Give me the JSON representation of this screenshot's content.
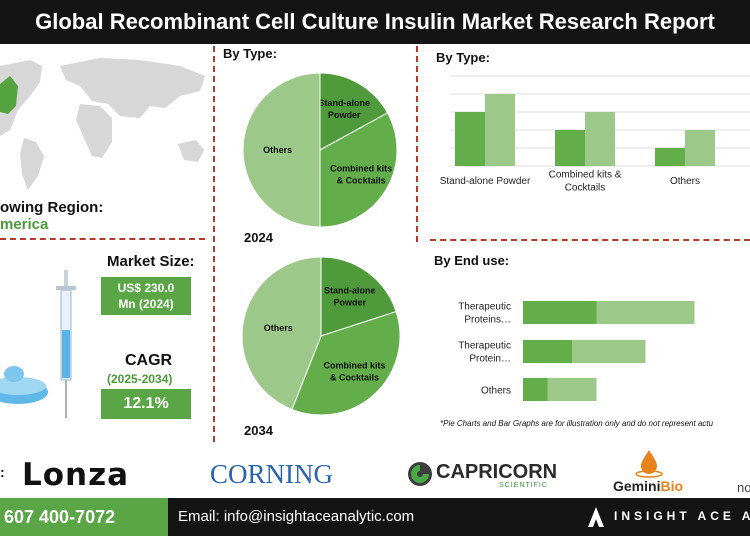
{
  "header": {
    "title": "Global Recombinant Cell Culture Insulin Market Research Report"
  },
  "region": {
    "label": "owing Region:",
    "value": "merica"
  },
  "market_size": {
    "label": "Market Size:",
    "value_line1": "US$ 230.0",
    "value_line2": "Mn (2024)"
  },
  "cagr": {
    "label": "CAGR",
    "period": "(2025-2034)",
    "value": "12.1%"
  },
  "pie_section": {
    "title": "By Type:"
  },
  "bar_type_section": {
    "title": "By Type:"
  },
  "end_use_section": {
    "title": "By End use:"
  },
  "note": "*Pie Charts and Bar Graphs are for illustration only and do not represent actu",
  "logos": {
    "prefix": ":",
    "lonza": "Lonza",
    "corning": "CORNING",
    "capricorn": "CAPRICORN",
    "capricorn_sub": "SCIENTIFIC",
    "gemini_a": "Gemini",
    "gemini_b": "Bio",
    "partial": "no"
  },
  "footer": {
    "phone": "607 400-7072",
    "email": "Email: info@insightaceanalytic.com",
    "brand": "INSIGHT ACE A"
  },
  "colors": {
    "dark_green": "#4f9a3a",
    "mid_green": "#63ad4a",
    "light_green": "#9cc98a",
    "accent_red": "#b53a2e",
    "header_bg": "#141414"
  },
  "chart_data": [
    {
      "type": "pie",
      "title": "",
      "year": "2024",
      "categories": [
        "Stand-alone Powder",
        "Combined kits & Cocktails",
        "Others"
      ],
      "labels": [
        "Stand-alone Powder",
        "Combined kits & Cocktails",
        "Others"
      ],
      "values": [
        17,
        33,
        50
      ]
    },
    {
      "type": "pie",
      "title": "",
      "year": "2034",
      "categories": [
        "Stand-alone Powder",
        "Combined kits & Cocktails",
        "Others"
      ],
      "labels": [
        "Stand-alone Powder",
        "Combined kits & Cocktails",
        "Others"
      ],
      "values": [
        20,
        36,
        44
      ]
    },
    {
      "type": "bar",
      "title": "By Type:",
      "categories": [
        "Stand-alone Powder",
        "Combined kits & Cocktails",
        "Others"
      ],
      "series": [
        {
          "values": [
            3,
            2,
            1
          ]
        },
        {
          "values": [
            4,
            3,
            2
          ]
        }
      ],
      "ylim": [
        0,
        5
      ],
      "grid": true
    },
    {
      "type": "bar",
      "orientation": "horizontal",
      "stacked": true,
      "title": "By End use:",
      "categories": [
        "Therapeutic Proteins…",
        "Therapeutic Protein…",
        "Others"
      ],
      "series": [
        {
          "values": [
            3,
            2,
            1
          ]
        },
        {
          "values": [
            4,
            3,
            2
          ]
        }
      ]
    }
  ]
}
